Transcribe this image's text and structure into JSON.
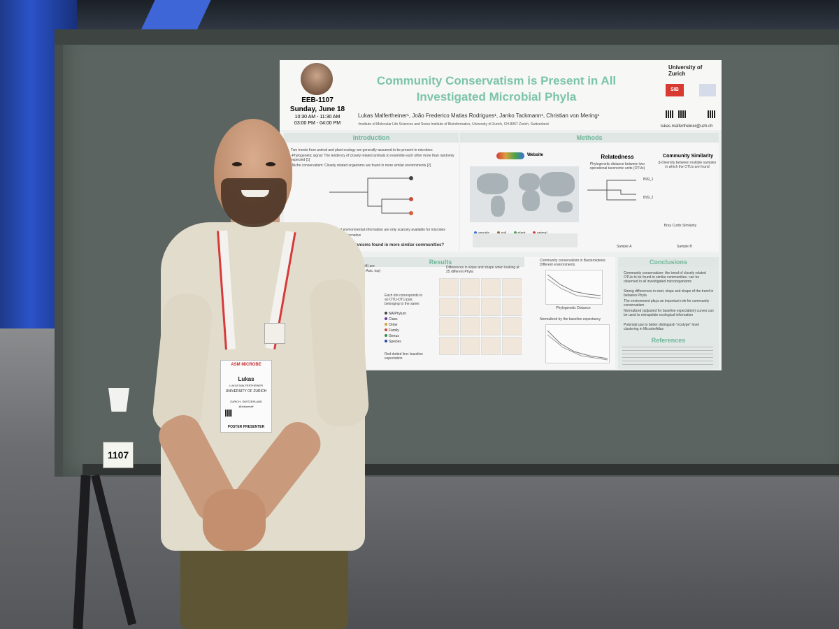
{
  "board": {
    "number": "1107"
  },
  "poster": {
    "session": {
      "code": "EEB-1107",
      "date": "Sunday, June 18",
      "time1": "10:30 AM - 11:30 AM",
      "time2": "03:00 PM - 04:00 PM"
    },
    "title_line1": "Community Conservatism is Present in All",
    "title_line2": "Investigated Microbial Phyla",
    "authors": "Lukas Malfertheiner¹, João Frederico Matias Rodrigues¹, Janko Tackmann¹, Christian von Mering¹",
    "affiliation": "¹Institute of Molecular Life Sciences and Swiss Institute of Bioinformatics, University of Zurich, CH-8057 Zurich, Switzerland",
    "logos": {
      "uzh": "University of Zurich",
      "sib": "SIB"
    },
    "contact": "lukas.malfertheiner@uzh.ch",
    "sections": {
      "introduction": {
        "heading": "Introduction",
        "text1": "Two trends from animal and plant ecology are generally assumed to be present in microbes:",
        "text2": "-Phylogenetic signal: The tendency of closely related animals to resemble each other more than randomly expected [1]",
        "text3": "-Niche conservatism: Closely related organisms are found in more similar environments [2]",
        "text4": "However, morphological and environmental information are only scarcely available for microbes",
        "text5": "community composition as an alternative",
        "question": "related microorganisms found in more similar communities?"
      },
      "methods": {
        "heading": "Methods",
        "website": "Website",
        "relatedness_title": "Relatedness",
        "relatedness_text": "Phylogenetic distance between two operational taxonomic units (OTUs)",
        "otu1": "B99_1",
        "otu2": "B99_2",
        "similarity_title": "Community Similarity",
        "similarity_text": "β-Diversity between multiple samples in which the OTUs are found",
        "bray": "Bray Curtis Similarity",
        "sample_a": "Sample A",
        "sample_b": "Sample B",
        "legend": [
          "aquatic",
          "soil",
          "plant",
          "animal"
        ],
        "legend_colors": [
          "#3a6fd8",
          "#9c6b3a",
          "#4aa34a",
          "#d83a3a"
        ]
      },
      "results": {
        "heading": "Results",
        "xaxis_note": "xis, left) are",
        "yaxis_note": "es (X-Axis, top)",
        "slope_note": "Differences in slope and shape when looking at 25 different Phyla",
        "dot_note": "Each dot corresponds to an OTU-OTU pair, belonging to the same:",
        "levels": [
          "NA/Phylum",
          "Class",
          "Order",
          "Family",
          "Genus",
          "Species"
        ],
        "level_colors": [
          "#444444",
          "#6a3a9a",
          "#d8a03a",
          "#c94a3a",
          "#3a8a4a",
          "#2a4ab0"
        ],
        "baseline_note": "Red dotted line: baseline expectation",
        "bacteroidetes_note": "Community conservatism in Bacteroidetes: Different environments",
        "normalized_note": "Normalized by the baseline expectancy",
        "phylo_axis": "Phylogenetic Distance"
      },
      "conclusions": {
        "heading": "Conclusions",
        "points": [
          "Community conservatism- the trend of closely related OTUs to be found in similar communities- can be observed in all investigated microorganisms",
          "Strong differences in start, slope and shape of the trend in between Phyla",
          "The environment plays an important role for community conservatism",
          "Normalized (adjusted for baseline expectation) curves can be used to extrapolate ecological information",
          "Potential use to better distinguish \"ecotype\" level clustering in MicrobeAtlas"
        ]
      },
      "references": {
        "heading": "References"
      }
    }
  },
  "badge": {
    "org": "ASM MICROBE",
    "first_name": "Lukas",
    "full_name": "LUKAS MALFERTHEINER",
    "institution": "UNIVERSITY OF ZURICH",
    "location": "ZURICH, SWITZERLAND",
    "handle": "@lukasmalf",
    "role": "POSTER PRESENTER"
  }
}
